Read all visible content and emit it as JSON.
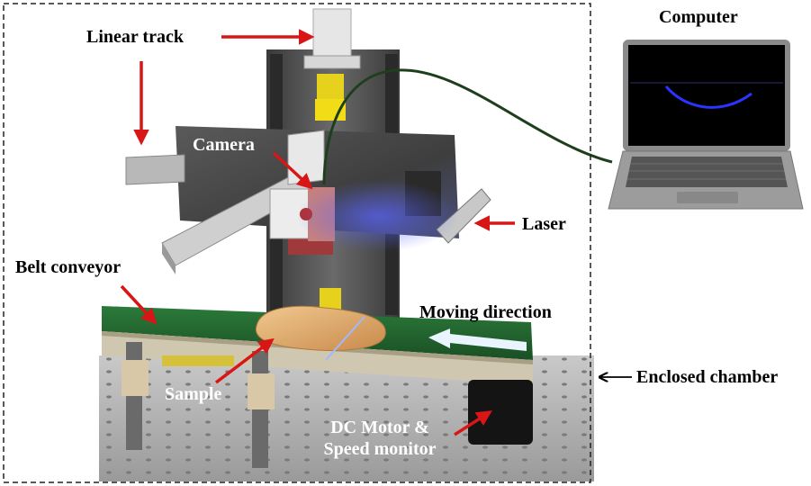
{
  "labels": {
    "linear_track": "Linear track",
    "camera": "Camera",
    "laser": "Laser",
    "belt_conveyor": "Belt conveyor",
    "moving_direction": "Moving direction",
    "sample": "Sample",
    "dc_motor_line1": "DC Motor &",
    "dc_motor_line2": "Speed monitor",
    "computer": "Computer",
    "enclosed_chamber": "Enclosed chamber"
  },
  "colors": {
    "arrow_red": "#d81616",
    "belt_green": "#1f5e2a",
    "laser_blue": "#3a48ff",
    "chamber_border": "#222222"
  }
}
